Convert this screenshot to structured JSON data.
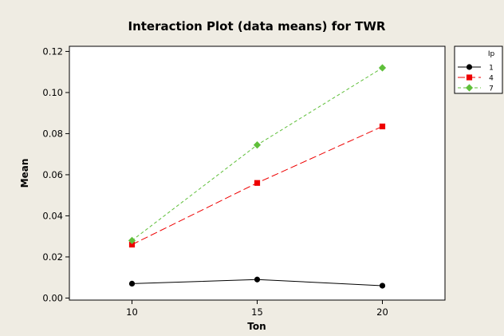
{
  "chart_data": {
    "type": "line",
    "title": "Interaction Plot (data means) for TWR",
    "xlabel": "Ton",
    "ylabel": "Mean",
    "x": [
      10,
      15,
      20
    ],
    "xlim": [
      7.5,
      22.5
    ],
    "ylim": [
      -0.001,
      0.1225
    ],
    "xticks": [
      "10",
      "15",
      "20"
    ],
    "yticks": [
      "0.00",
      "0.02",
      "0.04",
      "0.06",
      "0.08",
      "0.10",
      "0.12"
    ],
    "grid": false,
    "legend": {
      "title": "Ip",
      "placement": "top-right"
    },
    "series": [
      {
        "name": "1",
        "values": [
          0.007,
          0.009,
          0.006
        ],
        "color": "#000000",
        "marker": "circle",
        "dash": "solid"
      },
      {
        "name": "4",
        "values": [
          0.026,
          0.056,
          0.0835
        ],
        "color": "#ee0000",
        "marker": "square",
        "dash": "long-dash"
      },
      {
        "name": "7",
        "values": [
          0.028,
          0.0745,
          0.112
        ],
        "color": "#5fbf3a",
        "marker": "diamond",
        "dash": "short-dash"
      }
    ]
  }
}
